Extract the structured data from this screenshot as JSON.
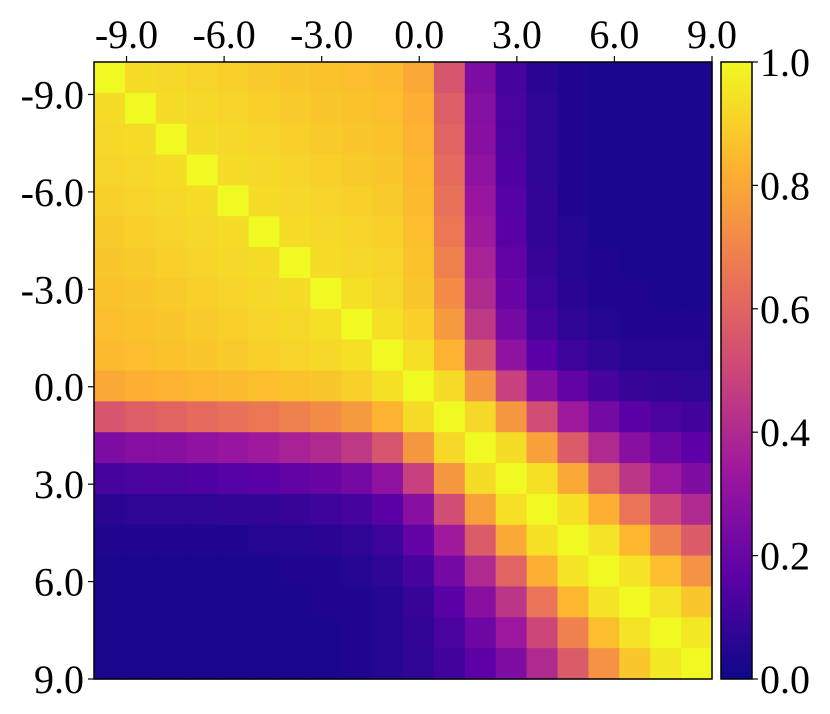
{
  "chart_data": {
    "type": "heatmap",
    "title": "",
    "xlabel": "",
    "ylabel": "",
    "x_ticks": [
      "-9.0",
      "-6.0",
      "-3.0",
      "0.0",
      "3.0",
      "6.0",
      "9.0"
    ],
    "y_ticks": [
      "-9.0",
      "-6.0",
      "-3.0",
      "0.0",
      "3.0",
      "6.0",
      "9.0"
    ],
    "x_tick_values": [
      -9,
      -6,
      -3,
      0,
      3,
      6,
      9
    ],
    "y_tick_values": [
      -9,
      -6,
      -3,
      0,
      3,
      6,
      9
    ],
    "x_range": [
      -10,
      9
    ],
    "y_range": [
      -10,
      9
    ],
    "x_axis_position": "top",
    "y_axis_direction": "down",
    "grid_size": 20,
    "colormap": "plasma",
    "colormap_stops": [
      "#0d0887",
      "#5c01a6",
      "#9c179e",
      "#cc4778",
      "#ed7953",
      "#fdb42f",
      "#f0f921"
    ],
    "value_range": [
      0.0,
      1.0
    ],
    "colorbar_ticks": [
      "0.0",
      "0.2",
      "0.4",
      "0.6",
      "0.8",
      "1.0"
    ],
    "colorbar_tick_values": [
      0.0,
      0.2,
      0.4,
      0.6,
      0.8,
      1.0
    ],
    "colorbar_position": "right",
    "grid": false,
    "description_of_pattern": null,
    "values": [
      [
        1.0,
        0.93,
        0.92,
        0.91,
        0.9,
        0.89,
        0.88,
        0.87,
        0.86,
        0.85,
        0.8,
        0.55,
        0.25,
        0.12,
        0.06,
        0.04,
        0.03,
        0.03,
        0.03,
        0.03
      ],
      [
        0.93,
        1.0,
        0.93,
        0.92,
        0.91,
        0.9,
        0.89,
        0.88,
        0.87,
        0.86,
        0.82,
        0.58,
        0.27,
        0.13,
        0.07,
        0.04,
        0.03,
        0.03,
        0.03,
        0.03
      ],
      [
        0.92,
        0.93,
        1.0,
        0.93,
        0.92,
        0.91,
        0.9,
        0.89,
        0.88,
        0.87,
        0.83,
        0.6,
        0.28,
        0.13,
        0.07,
        0.04,
        0.03,
        0.03,
        0.03,
        0.03
      ],
      [
        0.91,
        0.92,
        0.93,
        1.0,
        0.93,
        0.92,
        0.91,
        0.9,
        0.89,
        0.88,
        0.84,
        0.62,
        0.3,
        0.14,
        0.07,
        0.04,
        0.03,
        0.03,
        0.03,
        0.03
      ],
      [
        0.9,
        0.91,
        0.92,
        0.93,
        1.0,
        0.93,
        0.92,
        0.91,
        0.9,
        0.89,
        0.85,
        0.64,
        0.32,
        0.15,
        0.08,
        0.04,
        0.03,
        0.03,
        0.03,
        0.03
      ],
      [
        0.89,
        0.9,
        0.91,
        0.92,
        0.93,
        1.0,
        0.93,
        0.92,
        0.91,
        0.9,
        0.86,
        0.66,
        0.34,
        0.16,
        0.08,
        0.05,
        0.03,
        0.03,
        0.03,
        0.03
      ],
      [
        0.88,
        0.89,
        0.9,
        0.91,
        0.92,
        0.93,
        1.0,
        0.93,
        0.92,
        0.91,
        0.87,
        0.69,
        0.37,
        0.18,
        0.09,
        0.05,
        0.04,
        0.03,
        0.03,
        0.03
      ],
      [
        0.87,
        0.88,
        0.89,
        0.9,
        0.91,
        0.92,
        0.93,
        1.0,
        0.94,
        0.92,
        0.88,
        0.72,
        0.4,
        0.2,
        0.1,
        0.06,
        0.04,
        0.04,
        0.03,
        0.03
      ],
      [
        0.86,
        0.87,
        0.88,
        0.89,
        0.9,
        0.91,
        0.92,
        0.94,
        1.0,
        0.94,
        0.9,
        0.76,
        0.45,
        0.23,
        0.12,
        0.07,
        0.05,
        0.04,
        0.04,
        0.04
      ],
      [
        0.85,
        0.86,
        0.87,
        0.88,
        0.89,
        0.9,
        0.91,
        0.92,
        0.94,
        1.0,
        0.94,
        0.83,
        0.55,
        0.3,
        0.16,
        0.1,
        0.07,
        0.05,
        0.05,
        0.05
      ],
      [
        0.8,
        0.82,
        0.83,
        0.84,
        0.85,
        0.86,
        0.87,
        0.88,
        0.9,
        0.94,
        1.0,
        0.93,
        0.75,
        0.48,
        0.28,
        0.18,
        0.12,
        0.09,
        0.08,
        0.07
      ],
      [
        0.55,
        0.58,
        0.6,
        0.62,
        0.64,
        0.66,
        0.69,
        0.72,
        0.76,
        0.83,
        0.93,
        1.0,
        0.92,
        0.75,
        0.52,
        0.34,
        0.23,
        0.16,
        0.13,
        0.11
      ],
      [
        0.25,
        0.27,
        0.28,
        0.3,
        0.32,
        0.34,
        0.37,
        0.4,
        0.45,
        0.55,
        0.75,
        0.92,
        1.0,
        0.93,
        0.78,
        0.57,
        0.4,
        0.28,
        0.21,
        0.17
      ],
      [
        0.12,
        0.13,
        0.13,
        0.14,
        0.15,
        0.16,
        0.18,
        0.2,
        0.23,
        0.3,
        0.48,
        0.75,
        0.93,
        1.0,
        0.94,
        0.8,
        0.6,
        0.44,
        0.33,
        0.26
      ],
      [
        0.06,
        0.07,
        0.07,
        0.07,
        0.08,
        0.08,
        0.09,
        0.1,
        0.12,
        0.16,
        0.28,
        0.52,
        0.78,
        0.94,
        1.0,
        0.94,
        0.82,
        0.65,
        0.5,
        0.4
      ],
      [
        0.04,
        0.04,
        0.04,
        0.04,
        0.04,
        0.05,
        0.05,
        0.06,
        0.07,
        0.1,
        0.18,
        0.34,
        0.57,
        0.8,
        0.94,
        1.0,
        0.95,
        0.84,
        0.69,
        0.57
      ],
      [
        0.03,
        0.03,
        0.03,
        0.03,
        0.03,
        0.03,
        0.04,
        0.04,
        0.05,
        0.07,
        0.12,
        0.23,
        0.4,
        0.6,
        0.82,
        0.95,
        1.0,
        0.95,
        0.86,
        0.74
      ],
      [
        0.03,
        0.03,
        0.03,
        0.03,
        0.03,
        0.03,
        0.03,
        0.04,
        0.04,
        0.05,
        0.09,
        0.16,
        0.28,
        0.44,
        0.65,
        0.84,
        0.95,
        1.0,
        0.95,
        0.88
      ],
      [
        0.03,
        0.03,
        0.03,
        0.03,
        0.03,
        0.03,
        0.03,
        0.03,
        0.04,
        0.05,
        0.08,
        0.13,
        0.21,
        0.33,
        0.5,
        0.69,
        0.86,
        0.95,
        1.0,
        0.96
      ],
      [
        0.03,
        0.03,
        0.03,
        0.03,
        0.03,
        0.03,
        0.03,
        0.03,
        0.04,
        0.05,
        0.07,
        0.11,
        0.17,
        0.26,
        0.4,
        0.57,
        0.74,
        0.88,
        0.96,
        1.0
      ]
    ]
  }
}
